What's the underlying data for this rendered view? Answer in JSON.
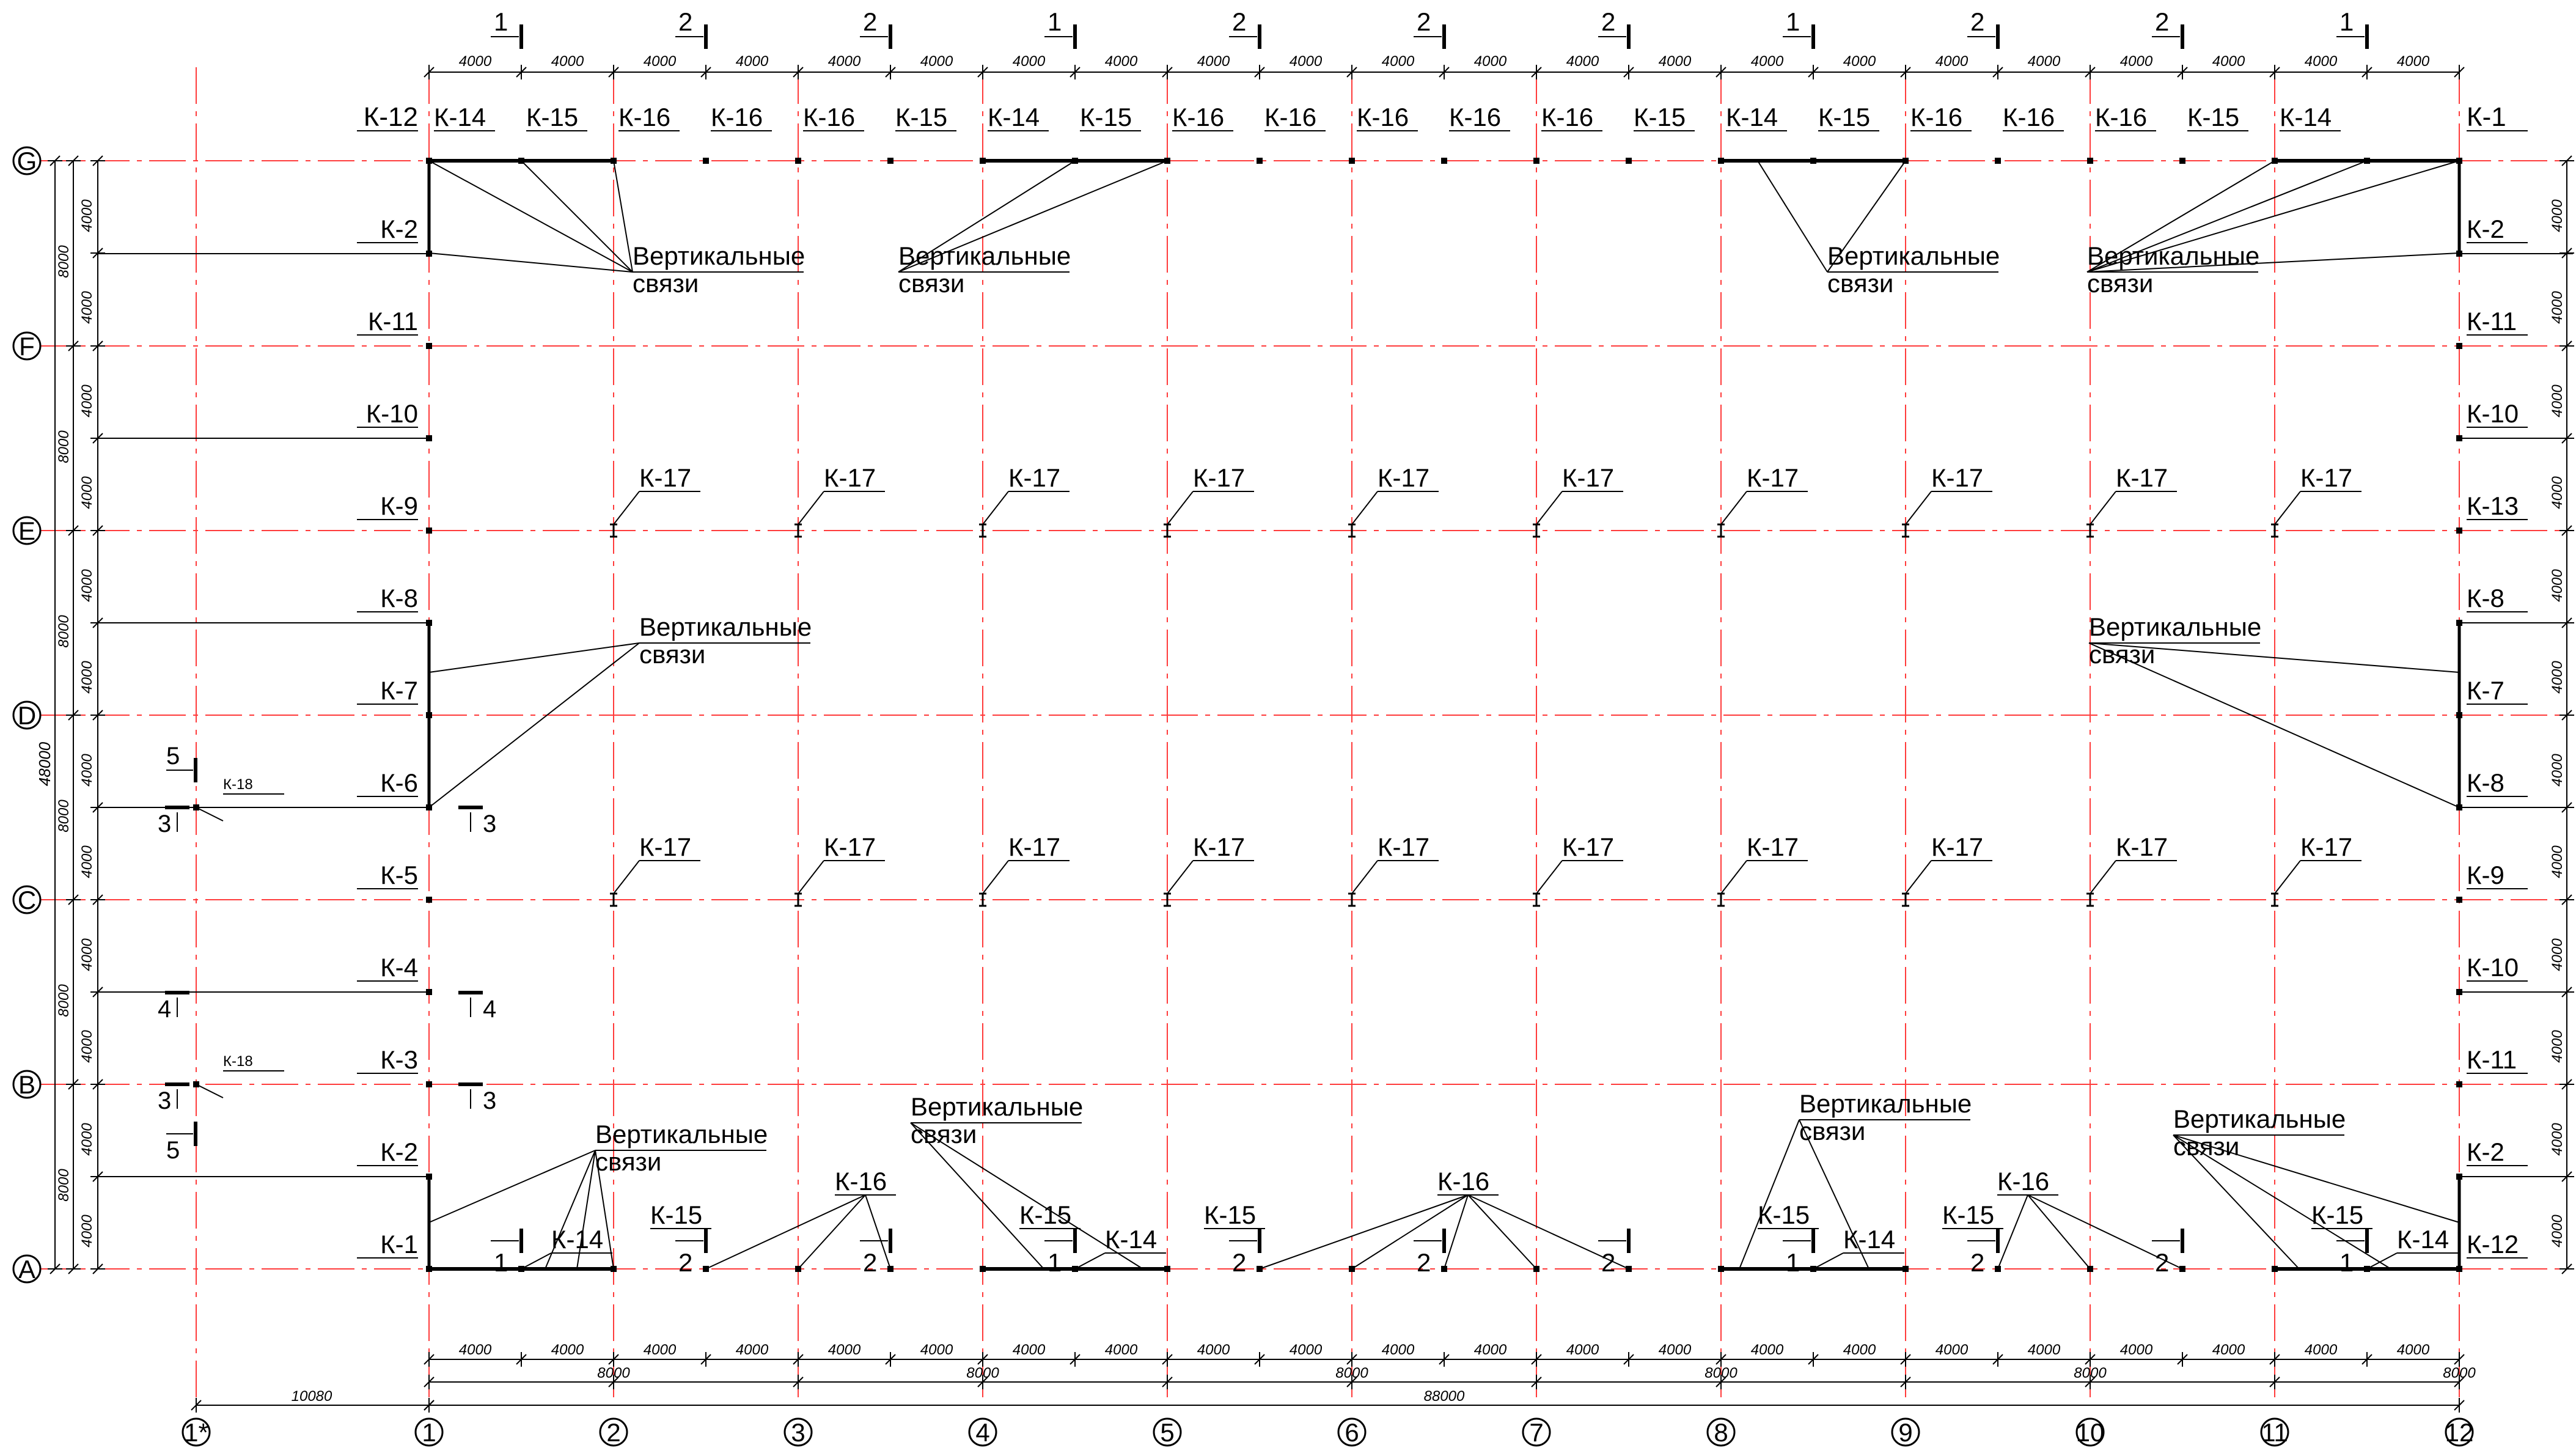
{
  "columns": [
    "1*",
    "1",
    "2",
    "3",
    "4",
    "5",
    "6",
    "7",
    "8",
    "9",
    "10",
    "11",
    "12"
  ],
  "rows": [
    "A",
    "B",
    "C",
    "D",
    "E",
    "F",
    "G"
  ],
  "dims": {
    "half": "4000",
    "bay": "8000",
    "total_x": "88000",
    "offset_x": "10080",
    "total_y": "48000"
  },
  "labels": {
    "braces_line1": "Вертикальные",
    "braces_line2": "связи"
  },
  "top_sections": [
    "1",
    "2",
    "2",
    "1",
    "2",
    "2",
    "2",
    "1",
    "2",
    "2",
    "1"
  ],
  "bottom_sections": [
    "1",
    "2",
    "2",
    "1",
    "2",
    "2",
    "2",
    "1",
    "2",
    "2",
    "1"
  ],
  "top_marks": [
    "К-14",
    "К-15",
    "К-16",
    "К-16",
    "К-16",
    "К-15",
    "К-14",
    "К-15",
    "К-16",
    "К-16",
    "К-16",
    "К-16",
    "К-16",
    "К-15",
    "К-14",
    "К-15",
    "К-16",
    "К-16",
    "К-16",
    "К-15",
    "К-14"
  ],
  "top_corner_left": "К-12",
  "top_corner_right": "К-1",
  "left_marks": [
    "К-1",
    "К-2",
    "К-3",
    "К-4",
    "К-5",
    "К-6",
    "К-7",
    "К-8",
    "К-9",
    "К-10",
    "К-11",
    "К-2"
  ],
  "right_marks": [
    "К-12",
    "К-2",
    "К-11",
    "К-10",
    "К-9",
    "К-8",
    "К-7",
    "К-8",
    "К-13",
    "К-10",
    "К-11",
    "К-2"
  ],
  "k17": "К-17",
  "k18": "К-18",
  "bottom_marks": {
    "k14": "К-14",
    "k15": "К-15",
    "k16": "К-16"
  },
  "section_marks": {
    "s3": "3",
    "s4": "4",
    "s5": "5"
  },
  "colors": {
    "axis": "#ff3b3b",
    "line": "#000000"
  }
}
